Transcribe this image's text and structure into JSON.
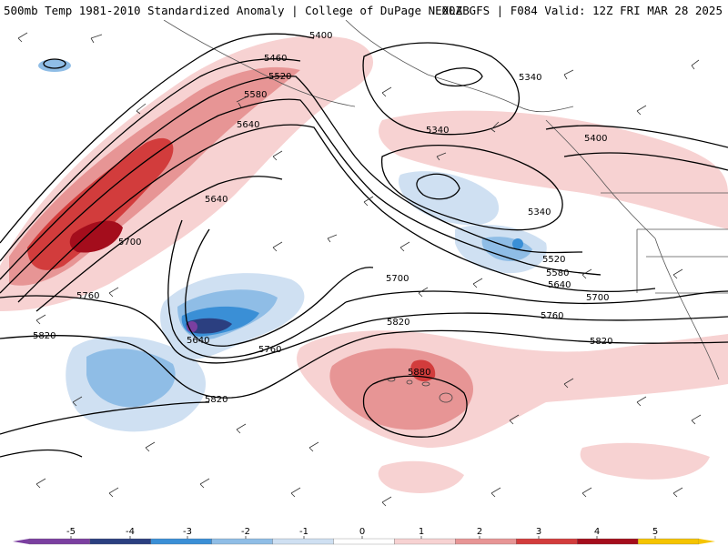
{
  "header": {
    "left": "500mb Temp 1981-2010 Standardized Anomaly | College of DuPage NEXLAB",
    "right": "00Z GFS | F084 Valid: 12Z FRI MAR 28 2025"
  },
  "contour_labels": [
    {
      "text": "5400"
    },
    {
      "text": "5460"
    },
    {
      "text": "5520"
    },
    {
      "text": "5580"
    },
    {
      "text": "5640"
    },
    {
      "text": "5340"
    },
    {
      "text": "5340"
    },
    {
      "text": "5340"
    },
    {
      "text": "5400"
    },
    {
      "text": "5640"
    },
    {
      "text": "5700"
    },
    {
      "text": "5700"
    },
    {
      "text": "5760"
    },
    {
      "text": "5820"
    },
    {
      "text": "5640"
    },
    {
      "text": "5760"
    },
    {
      "text": "5820"
    },
    {
      "text": "5820"
    },
    {
      "text": "5880"
    },
    {
      "text": "5520"
    },
    {
      "text": "5580"
    },
    {
      "text": "5640"
    },
    {
      "text": "5700"
    },
    {
      "text": "5760"
    },
    {
      "text": "5820"
    }
  ],
  "colorbar": {
    "ticks": [
      "-5",
      "-4",
      "-3",
      "-2",
      "-1",
      "0",
      "1",
      "2",
      "3",
      "4",
      "5"
    ],
    "colors": [
      "#7b3fa0",
      "#2b3f80",
      "#3a8fd6",
      "#8fbde6",
      "#cfe0f2",
      "#ffffff",
      "#f7d2d2",
      "#e79595",
      "#d23c3c",
      "#a40d1c",
      "#f5c400"
    ]
  }
}
